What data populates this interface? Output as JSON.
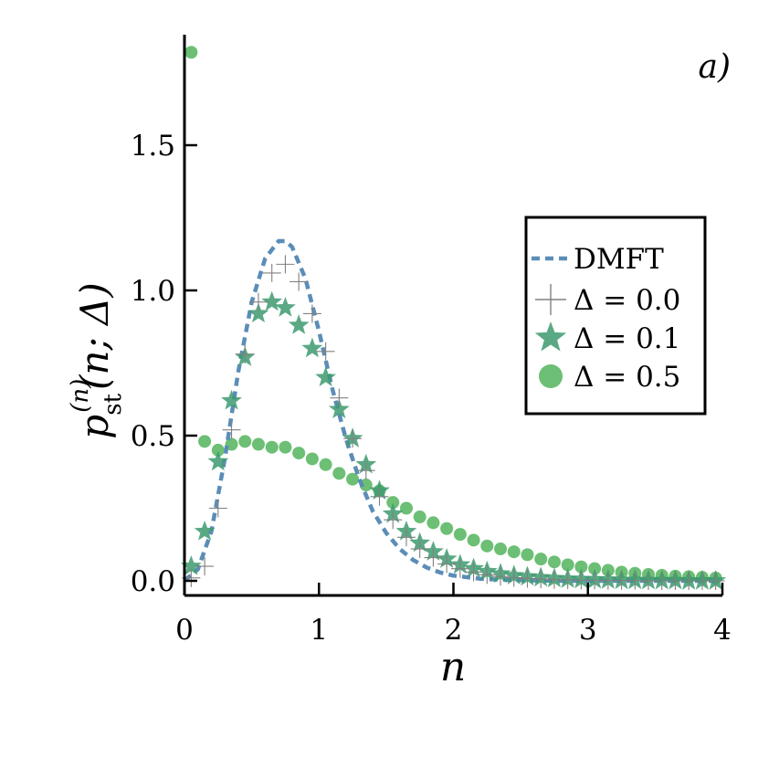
{
  "chart_data": {
    "type": "scatter",
    "panel_label": "a)",
    "xlabel": "n",
    "ylabel": {
      "symbol": "p",
      "superscript": "(n)",
      "subscript": "st",
      "args": "(n; Δ)"
    },
    "xlim": [
      0,
      4
    ],
    "ylim": [
      -0.05,
      1.9
    ],
    "xticks": [
      0,
      1,
      2,
      3,
      4
    ],
    "xtick_labels": [
      "0",
      "1",
      "2",
      "3",
      "4"
    ],
    "yticks": [
      0.0,
      0.5,
      1.0,
      1.5
    ],
    "ytick_labels": [
      "0.0",
      "0.5",
      "1.0",
      "1.5"
    ],
    "grid": false,
    "legend_position": "center-right",
    "series": [
      {
        "name": "DMFT",
        "style": "dashed-line",
        "color": "#5b8db8",
        "x": [
          0.0,
          0.1,
          0.2,
          0.3,
          0.4,
          0.5,
          0.6,
          0.7,
          0.75,
          0.8,
          0.9,
          1.0,
          1.1,
          1.2,
          1.3,
          1.4,
          1.5,
          1.6,
          1.7,
          1.8,
          1.9,
          2.0,
          2.2,
          2.4,
          2.6,
          2.8,
          3.0,
          3.5,
          4.0
        ],
        "y": [
          0.0,
          0.04,
          0.17,
          0.42,
          0.72,
          0.96,
          1.11,
          1.17,
          1.17,
          1.15,
          1.04,
          0.86,
          0.66,
          0.49,
          0.35,
          0.24,
          0.165,
          0.11,
          0.072,
          0.046,
          0.029,
          0.018,
          0.007,
          0.003,
          0.001,
          0.0,
          0.0,
          0.0,
          0.0
        ]
      },
      {
        "name": "Δ = 0.0",
        "style": "plus",
        "color": "#808080",
        "x": [
          0.05,
          0.15,
          0.25,
          0.35,
          0.45,
          0.55,
          0.65,
          0.75,
          0.85,
          0.95,
          1.05,
          1.15,
          1.25,
          1.35,
          1.45,
          1.55,
          1.65,
          1.75,
          1.85,
          1.95,
          2.05,
          2.15,
          2.25,
          2.35,
          2.45,
          2.55,
          2.65,
          2.75,
          2.85,
          2.95,
          3.05,
          3.15,
          3.25,
          3.35,
          3.45,
          3.55,
          3.65,
          3.75,
          3.85,
          3.95
        ],
        "y": [
          0.01,
          0.05,
          0.25,
          0.52,
          0.78,
          0.96,
          1.06,
          1.09,
          1.03,
          0.92,
          0.79,
          0.63,
          0.49,
          0.38,
          0.29,
          0.21,
          0.15,
          0.11,
          0.08,
          0.058,
          0.042,
          0.03,
          0.021,
          0.015,
          0.011,
          0.008,
          0.006,
          0.004,
          0.003,
          0.002,
          0.002,
          0.001,
          0.001,
          0.001,
          0.0,
          0.0,
          0.0,
          0.0,
          0.0,
          0.0
        ]
      },
      {
        "name": "Δ = 0.1",
        "style": "star",
        "color": "#3d9a6e",
        "x": [
          0.05,
          0.15,
          0.25,
          0.35,
          0.45,
          0.55,
          0.65,
          0.75,
          0.85,
          0.95,
          1.05,
          1.15,
          1.25,
          1.35,
          1.45,
          1.55,
          1.65,
          1.75,
          1.85,
          1.95,
          2.05,
          2.15,
          2.25,
          2.35,
          2.45,
          2.55,
          2.65,
          2.75,
          2.85,
          2.95,
          3.05,
          3.15,
          3.25,
          3.35,
          3.45,
          3.55,
          3.65,
          3.75,
          3.85,
          3.95
        ],
        "y": [
          0.05,
          0.17,
          0.41,
          0.62,
          0.77,
          0.92,
          0.96,
          0.94,
          0.88,
          0.8,
          0.7,
          0.59,
          0.49,
          0.4,
          0.31,
          0.23,
          0.17,
          0.13,
          0.1,
          0.075,
          0.055,
          0.042,
          0.032,
          0.024,
          0.018,
          0.014,
          0.011,
          0.008,
          0.006,
          0.005,
          0.004,
          0.003,
          0.002,
          0.002,
          0.001,
          0.001,
          0.001,
          0.0,
          0.0,
          0.0
        ]
      },
      {
        "name": "Δ = 0.5",
        "style": "circle",
        "color": "#5cb865",
        "x": [
          0.05,
          0.15,
          0.25,
          0.35,
          0.45,
          0.55,
          0.65,
          0.75,
          0.85,
          0.95,
          1.05,
          1.15,
          1.25,
          1.35,
          1.45,
          1.55,
          1.65,
          1.75,
          1.85,
          1.95,
          2.05,
          2.15,
          2.25,
          2.35,
          2.45,
          2.55,
          2.65,
          2.75,
          2.85,
          2.95,
          3.05,
          3.15,
          3.25,
          3.35,
          3.45,
          3.55,
          3.65,
          3.75,
          3.85,
          3.95
        ],
        "y": [
          1.82,
          0.48,
          0.45,
          0.47,
          0.48,
          0.47,
          0.46,
          0.46,
          0.44,
          0.42,
          0.4,
          0.37,
          0.35,
          0.33,
          0.31,
          0.27,
          0.25,
          0.22,
          0.2,
          0.18,
          0.16,
          0.14,
          0.12,
          0.11,
          0.1,
          0.09,
          0.075,
          0.065,
          0.055,
          0.048,
          0.042,
          0.036,
          0.03,
          0.026,
          0.022,
          0.019,
          0.016,
          0.014,
          0.012,
          0.01
        ]
      }
    ]
  }
}
